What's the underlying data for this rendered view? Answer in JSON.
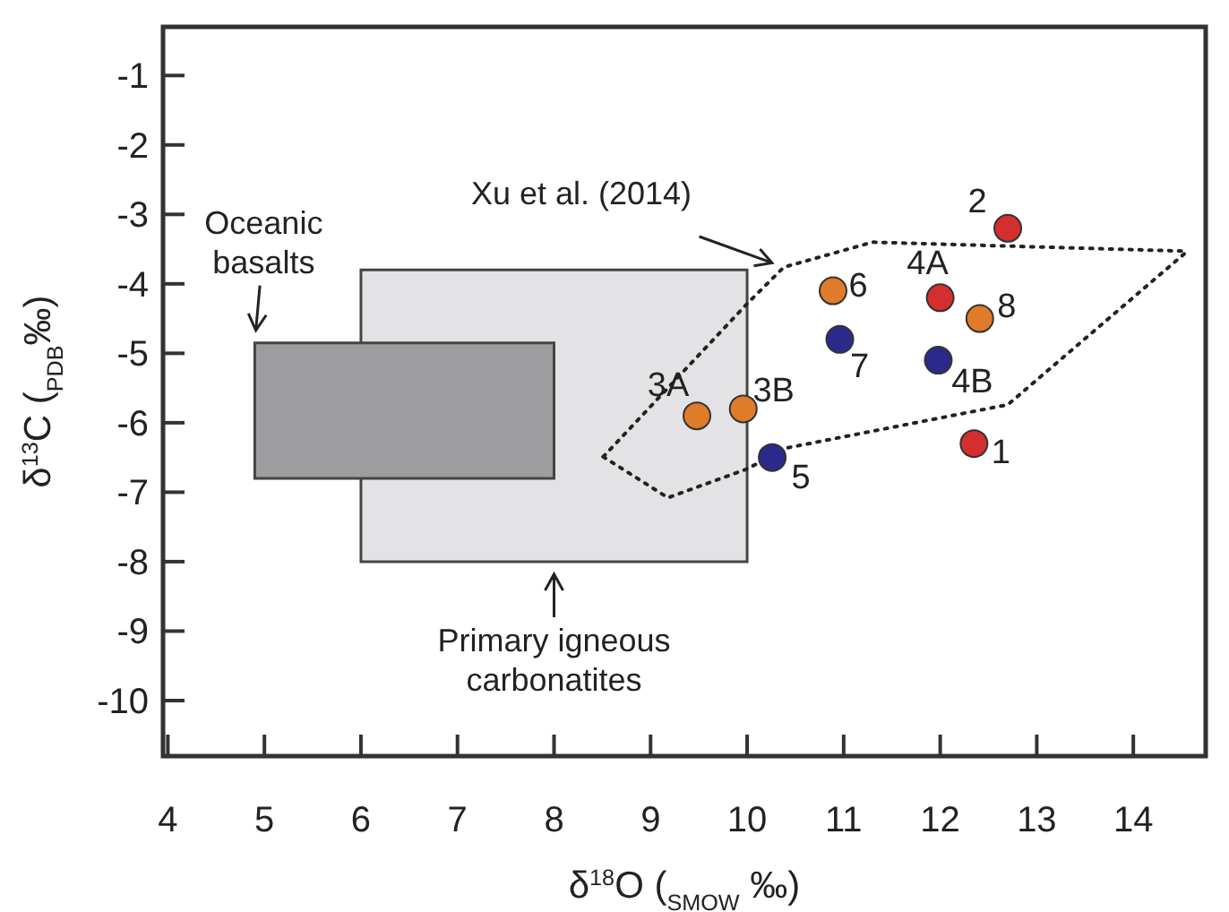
{
  "chart_data": {
    "type": "scatter",
    "xlabel": "δ$^{18}$O ($_{SMOW}$ ‰)",
    "ylabel": "δ$^{13}$C ($_{PDB}$‰)",
    "xlim": [
      3.95,
      14.75
    ],
    "ylim": [
      -10.8,
      -0.3
    ],
    "xticks": [
      4,
      5,
      6,
      7,
      8,
      9,
      10,
      11,
      12,
      13,
      14
    ],
    "yticks": [
      -1,
      -2,
      -3,
      -4,
      -5,
      -6,
      -7,
      -8,
      -9,
      -10
    ],
    "grid": false,
    "series": [
      {
        "color": "#d42e2e",
        "marker": "circle",
        "x": [
          12.35,
          12.7,
          12.0
        ],
        "values": [
          -6.3,
          -3.2,
          -4.2
        ]
      },
      {
        "color": "#e07b2a",
        "marker": "circle",
        "x": [
          9.48,
          9.96,
          10.89,
          12.41
        ],
        "values": [
          -5.9,
          -5.8,
          -4.1,
          -4.5
        ]
      },
      {
        "color": "#2b2a8a",
        "marker": "circle",
        "x": [
          11.98,
          10.26,
          10.96
        ],
        "values": [
          -5.1,
          -6.5,
          -4.8
        ]
      },
      {
        "type": "area",
        "color": "#9d9da0",
        "x": [
          4.9,
          4.9,
          8,
          8
        ],
        "values": [
          -6.8,
          -4.85,
          -4.85,
          -6.8
        ]
      },
      {
        "type": "area",
        "color": "#e3e3e5",
        "x": [
          6,
          6,
          10,
          10
        ],
        "values": [
          -8,
          -3.8,
          -3.8,
          -8
        ]
      },
      {
        "type": "line",
        "color": "#222222",
        "line_style": "dotted",
        "x": [
          8.51,
          9.99,
          10.38,
          11.3,
          14.56
        ],
        "values": [
          -6.49,
          -4.3,
          -3.76,
          -3.4,
          -3.53
        ]
      },
      {
        "type": "line",
        "color": "#222222",
        "line_style": "dotted",
        "x": [
          8.51,
          9.18,
          9.99,
          10.42,
          12.7,
          14.56
        ],
        "values": [
          -6.49,
          -7.08,
          -6.67,
          -6.36,
          -5.74,
          -3.53
        ]
      }
    ],
    "annotations": [
      {
        "text": "1",
        "x": 12.35,
        "y": -6.3
      },
      {
        "text": "2",
        "x": 12.7,
        "y": -3.2
      },
      {
        "text": "3A",
        "x": 9.48,
        "y": -5.9
      },
      {
        "text": "3B",
        "x": 9.96,
        "y": -5.8
      },
      {
        "text": "4A",
        "x": 12.0,
        "y": -4.2
      },
      {
        "text": "4B",
        "x": 11.98,
        "y": -5.1
      },
      {
        "text": "5",
        "x": 10.26,
        "y": -6.5
      },
      {
        "text": "6",
        "x": 10.89,
        "y": -4.1
      },
      {
        "text": "7",
        "x": 10.96,
        "y": -4.8
      },
      {
        "text": "8",
        "x": 12.41,
        "y": -4.5
      },
      {
        "text": "Xu et al. (2014)",
        "x": 10.38,
        "y": -3.76
      },
      {
        "text": "Oceanic basalts",
        "x": 4.9,
        "y": -4.85
      },
      {
        "text": "Primary igneous carbonatites",
        "x": 8,
        "y": -8
      }
    ]
  }
}
